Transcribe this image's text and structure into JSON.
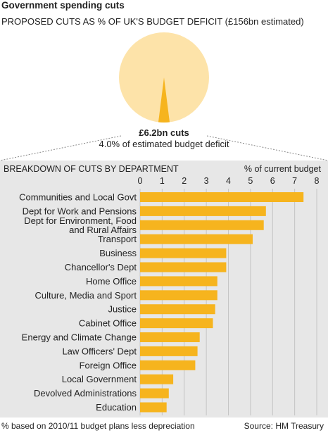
{
  "header": {
    "title": "Government spending cuts",
    "subtitle": "PROPOSED CUTS AS % OF UK'S BUDGET DEFICIT (£156bn estimated)"
  },
  "pie": {
    "amount_label": "£6.2bn cuts",
    "share_label": "4.0% of estimated budget deficit",
    "share_percent": 4.0
  },
  "colors": {
    "bar": "#f6b41e",
    "pie_light": "#fde3a9",
    "pie_cut": "#f6b41e",
    "panel": "#e7e7e7",
    "grid": "#c4c4c4"
  },
  "footer": {
    "note": "% based on 2010/11 budget plans less depreciation",
    "source": "Source: HM Treasury"
  },
  "chart_data": {
    "type": "bar",
    "orientation": "horizontal",
    "title": "BREAKDOWN OF CUTS BY DEPARTMENT",
    "unit_label": "% of current budget",
    "xlim": [
      0,
      8
    ],
    "ticks": [
      0,
      1,
      2,
      3,
      4,
      5,
      6,
      7,
      8
    ],
    "grid": true,
    "categories": [
      [
        "Communities and Local Govt"
      ],
      [
        "Dept for Work and Pensions"
      ],
      [
        "Dept for Environment, Food",
        "and Rural Affairs"
      ],
      [
        "Transport"
      ],
      [
        "Business"
      ],
      [
        "Chancellor's Dept"
      ],
      [
        "Home Office"
      ],
      [
        "Culture, Media and Sport"
      ],
      [
        "Justice"
      ],
      [
        "Cabinet Office"
      ],
      [
        "Energy and Climate Change"
      ],
      [
        "Law Officers' Dept"
      ],
      [
        "Foreign Office"
      ],
      [
        "Local Government"
      ],
      [
        "Devolved Administrations"
      ],
      [
        "Education"
      ]
    ],
    "values": [
      7.4,
      5.7,
      5.6,
      5.1,
      3.9,
      3.9,
      3.5,
      3.5,
      3.4,
      3.3,
      2.7,
      2.6,
      2.5,
      1.5,
      1.3,
      1.2
    ]
  }
}
